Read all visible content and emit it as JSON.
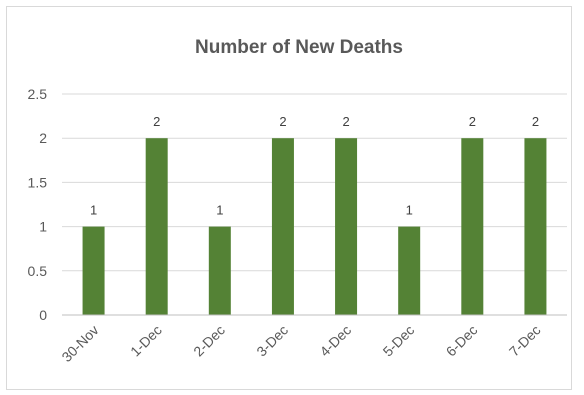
{
  "chart_data": {
    "type": "bar",
    "title": "Number of New Deaths",
    "categories": [
      "30-Nov",
      "1-Dec",
      "2-Dec",
      "3-Dec",
      "4-Dec",
      "5-Dec",
      "6-Dec",
      "7-Dec"
    ],
    "values": [
      1,
      2,
      1,
      2,
      2,
      1,
      2,
      2
    ],
    "data_labels": [
      "1",
      "2",
      "1",
      "2",
      "2",
      "1",
      "2",
      "2"
    ],
    "ylim": [
      0,
      2.5
    ],
    "yticks": [
      0,
      0.5,
      1,
      1.5,
      2,
      2.5
    ],
    "ytick_labels": [
      "0",
      "0.5",
      "1",
      "1.5",
      "2",
      "2.5"
    ],
    "grid": true,
    "legend": "none",
    "bar_color": "#548235"
  }
}
